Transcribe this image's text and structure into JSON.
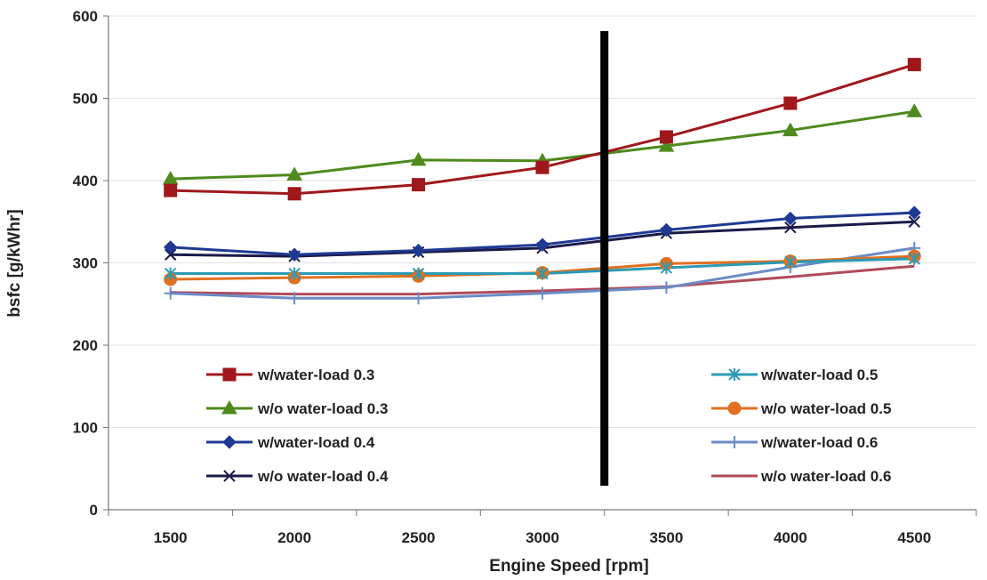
{
  "chart_data": {
    "type": "line",
    "title": "",
    "xlabel": "Engine Speed [rpm]",
    "ylabel": "bsfc [g/kWhr]",
    "categories": [
      "1500",
      "2000",
      "2500",
      "3000",
      "3500",
      "4000",
      "4500"
    ],
    "x": [
      1500,
      2000,
      2500,
      3000,
      3500,
      4000,
      4500
    ],
    "ylim": [
      0,
      600
    ],
    "yticks": [
      "0",
      "100",
      "200",
      "300",
      "400",
      "500",
      "600"
    ],
    "grid": "horizontal-light",
    "vertical_marker": {
      "x_between": [
        "3000",
        "3500"
      ],
      "color": "#000000"
    },
    "series": [
      {
        "name": "w/water-load 0.3",
        "values": [
          388,
          384,
          395,
          416,
          453,
          494,
          541
        ],
        "color": "#A0181C",
        "marker": "square"
      },
      {
        "name": "w/o water-load 0.3",
        "values": [
          402,
          407,
          425,
          424,
          442,
          461,
          484
        ],
        "color": "#4E8A1E",
        "marker": "triangle"
      },
      {
        "name": "w/water-load 0.4",
        "values": [
          319,
          310,
          315,
          322,
          340,
          354,
          361
        ],
        "color": "#1F3A93",
        "marker": "diamond"
      },
      {
        "name": "w/o water-load 0.4",
        "values": [
          310,
          308,
          313,
          318,
          336,
          343,
          350
        ],
        "color": "#1A1A4A",
        "marker": "x"
      },
      {
        "name": "w/water-load 0.5",
        "values": [
          287,
          287,
          287,
          287,
          294,
          301,
          305
        ],
        "color": "#2A9BB5",
        "marker": "asterisk"
      },
      {
        "name": "w/o water-load 0.5",
        "values": [
          280,
          282,
          284,
          288,
          299,
          302,
          308
        ],
        "color": "#E07020",
        "marker": "circle"
      },
      {
        "name": "w/water-load 0.6",
        "values": [
          263,
          257,
          257,
          263,
          270,
          295,
          318
        ],
        "color": "#6A8CC8",
        "marker": "plus"
      },
      {
        "name": "w/o water-load 0.6",
        "values": [
          264,
          262,
          262,
          266,
          271,
          283,
          296
        ],
        "color": "#B04A5A",
        "marker": "none"
      }
    ],
    "legend": {
      "placement": "inside-bottom",
      "columns": 2
    }
  }
}
